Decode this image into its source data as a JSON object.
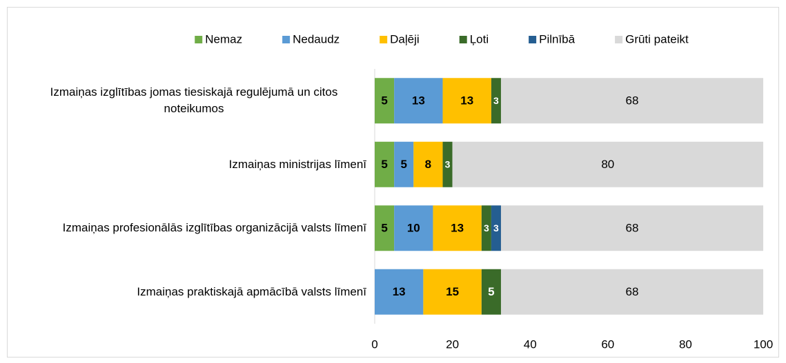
{
  "chart_data": {
    "type": "stacked-bar-horizontal",
    "categories": [
      "Izmaiņas izglītības jomas tiesiskajā regulējumā un citos noteikumos",
      "Izmaiņas ministrijas līmenī",
      "Izmaiņas profesionālās izglītības organizācijā valsts līmenī",
      "Izmaiņas praktiskajā apmācībā valsts līmenī"
    ],
    "series": [
      {
        "name": "Nemaz",
        "color": "#70ad47",
        "values": [
          5,
          5,
          5,
          null
        ],
        "value_labels": [
          "5",
          "5",
          "5",
          null
        ]
      },
      {
        "name": "Nedaudz",
        "color": "#5b9bd5",
        "values": [
          12.5,
          5,
          10,
          12.5
        ],
        "value_labels": [
          "13",
          "5",
          "10",
          "13"
        ]
      },
      {
        "name": "Daļēji",
        "color": "#ffc000",
        "values": [
          12.5,
          7.5,
          12.5,
          15
        ],
        "value_labels": [
          "13",
          "8",
          "13",
          "15"
        ]
      },
      {
        "name": "Ļoti",
        "color": "#3a6b29",
        "values": [
          2.5,
          2.5,
          2.5,
          5
        ],
        "value_labels": [
          "3",
          "3",
          "3",
          "5"
        ]
      },
      {
        "name": "Pilnībā",
        "color": "#255e91",
        "values": [
          null,
          null,
          2.5,
          null
        ],
        "value_labels": [
          null,
          null,
          "3",
          null
        ]
      },
      {
        "name": "Grūti pateikt",
        "color": "#d9d9d9",
        "values": [
          67.5,
          80,
          67.5,
          67.5
        ],
        "value_labels": [
          "68",
          "80",
          "68",
          "68"
        ]
      }
    ],
    "xlim": [
      0,
      100
    ],
    "xticks": [
      0,
      20,
      40,
      60,
      80,
      100
    ],
    "legend": "top"
  }
}
